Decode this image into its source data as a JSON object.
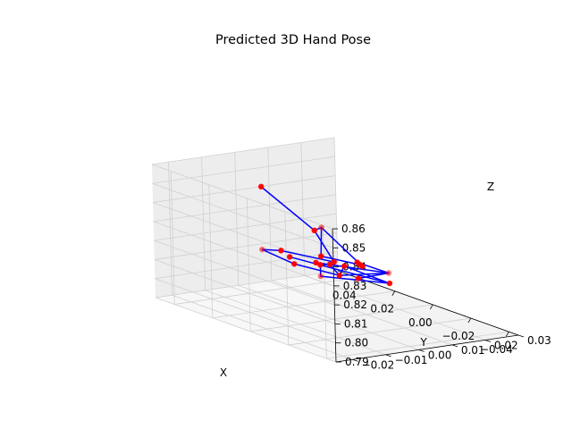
{
  "chart_data": {
    "type": "scatter",
    "projection": "3d",
    "title": "Predicted 3D Hand Pose",
    "xlabel": "X",
    "ylabel": "Y",
    "zlabel": "Z",
    "xlim": [
      0.05,
      -0.045
    ],
    "ylim": [
      -0.025,
      0.03
    ],
    "zlim": [
      0.79,
      0.86
    ],
    "x_ticks": [
      "0.04",
      "0.02",
      "0.00",
      "−0.02",
      "−0.04"
    ],
    "y_ticks": [
      "−0.02",
      "−0.01",
      "0.00",
      "0.01",
      "0.02",
      "0.03"
    ],
    "z_ticks": [
      "0.79",
      "0.80",
      "0.81",
      "0.82",
      "0.83",
      "0.84",
      "0.85",
      "0.86"
    ],
    "grid": true,
    "marker_color": "#ff0000",
    "line_color": "#0000ff",
    "pane_color": "#f2f2f2",
    "joints": [
      {
        "x": 0.005,
        "y": 0.02,
        "z": 0.802
      },
      {
        "x": 0.04,
        "y": 0.01,
        "z": 0.806
      },
      {
        "x": 0.015,
        "y": 0.005,
        "z": 0.812
      },
      {
        "x": 0.02,
        "y": 0.0,
        "z": 0.812
      },
      {
        "x": 0.028,
        "y": -0.005,
        "z": 0.818
      },
      {
        "x": 0.02,
        "y": 0.015,
        "z": 0.807
      },
      {
        "x": 0.018,
        "y": -0.005,
        "z": 0.821
      },
      {
        "x": 0.01,
        "y": -0.015,
        "z": 0.86
      },
      {
        "x": 0.0,
        "y": -0.005,
        "z": 0.838
      },
      {
        "x": -0.002,
        "y": -0.004,
        "z": 0.84
      },
      {
        "x": -0.012,
        "y": -0.01,
        "z": 0.83
      },
      {
        "x": -0.015,
        "y": 0.0,
        "z": 0.824
      },
      {
        "x": -0.025,
        "y": -0.005,
        "z": 0.828
      },
      {
        "x": -0.04,
        "y": -0.015,
        "z": 0.838
      },
      {
        "x": -0.03,
        "y": 0.0,
        "z": 0.825
      },
      {
        "x": 0.005,
        "y": 0.005,
        "z": 0.81
      },
      {
        "x": -0.005,
        "y": 0.005,
        "z": 0.812
      },
      {
        "x": 0.01,
        "y": 0.005,
        "z": 0.814
      },
      {
        "x": 0.012,
        "y": 0.002,
        "z": 0.815
      },
      {
        "x": 0.015,
        "y": 0.005,
        "z": 0.806
      },
      {
        "x": -0.01,
        "y": -0.005,
        "z": 0.825
      }
    ],
    "bones": [
      [
        0,
        19
      ],
      [
        19,
        2
      ],
      [
        2,
        17
      ],
      [
        17,
        15
      ],
      [
        15,
        5
      ],
      [
        0,
        5
      ],
      [
        0,
        1
      ],
      [
        15,
        3
      ],
      [
        3,
        4
      ],
      [
        4,
        6
      ],
      [
        6,
        20
      ],
      [
        20,
        8
      ],
      [
        8,
        7
      ],
      [
        8,
        9
      ],
      [
        9,
        10
      ],
      [
        10,
        11
      ],
      [
        9,
        12
      ],
      [
        12,
        13
      ],
      [
        13,
        14
      ],
      [
        14,
        16
      ],
      [
        14,
        18
      ],
      [
        14,
        15
      ]
    ]
  }
}
